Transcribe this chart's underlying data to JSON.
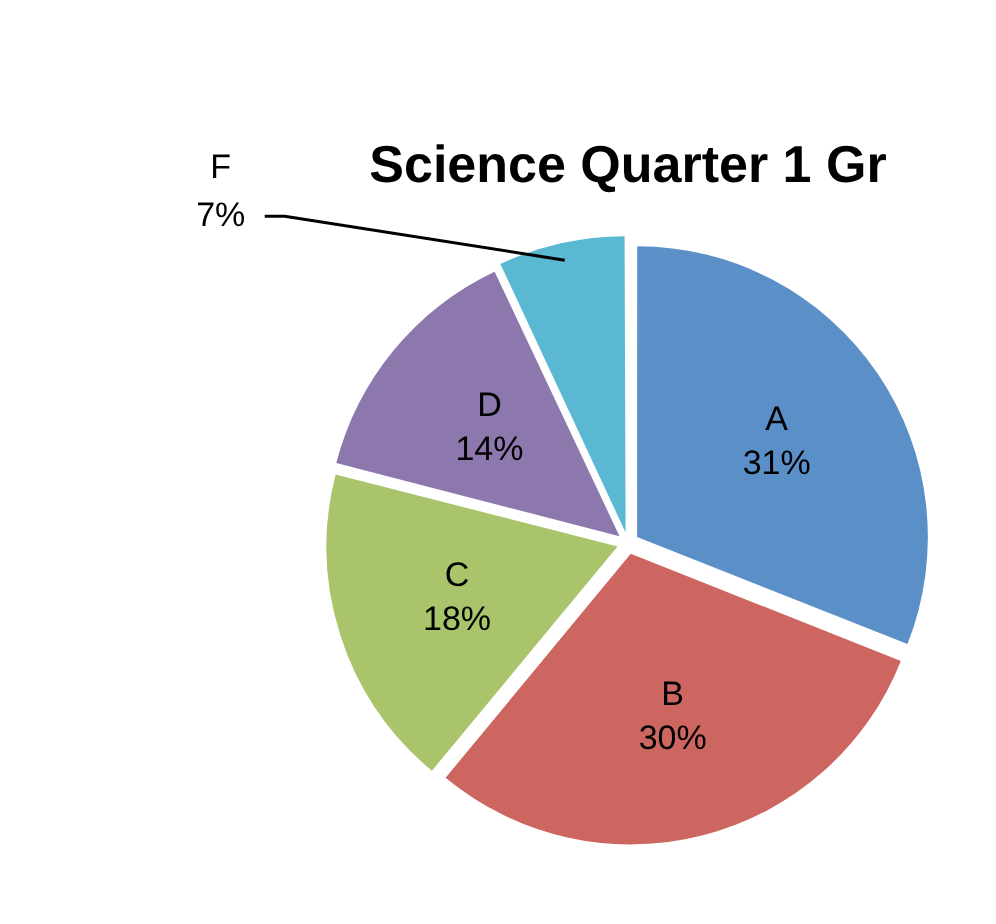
{
  "chart_data": {
    "type": "pie",
    "title": "Science Quarter 1 Gr",
    "categories": [
      "A",
      "B",
      "C",
      "D",
      "F"
    ],
    "values": [
      31,
      30,
      18,
      14,
      7
    ],
    "value_labels": [
      "31%",
      "30%",
      "18%",
      "14%",
      "7%"
    ],
    "colors": [
      "#5b8fc7",
      "#cd6660",
      "#a9c46a",
      "#8d78ae",
      "#5bb8d2"
    ],
    "legend": false
  }
}
